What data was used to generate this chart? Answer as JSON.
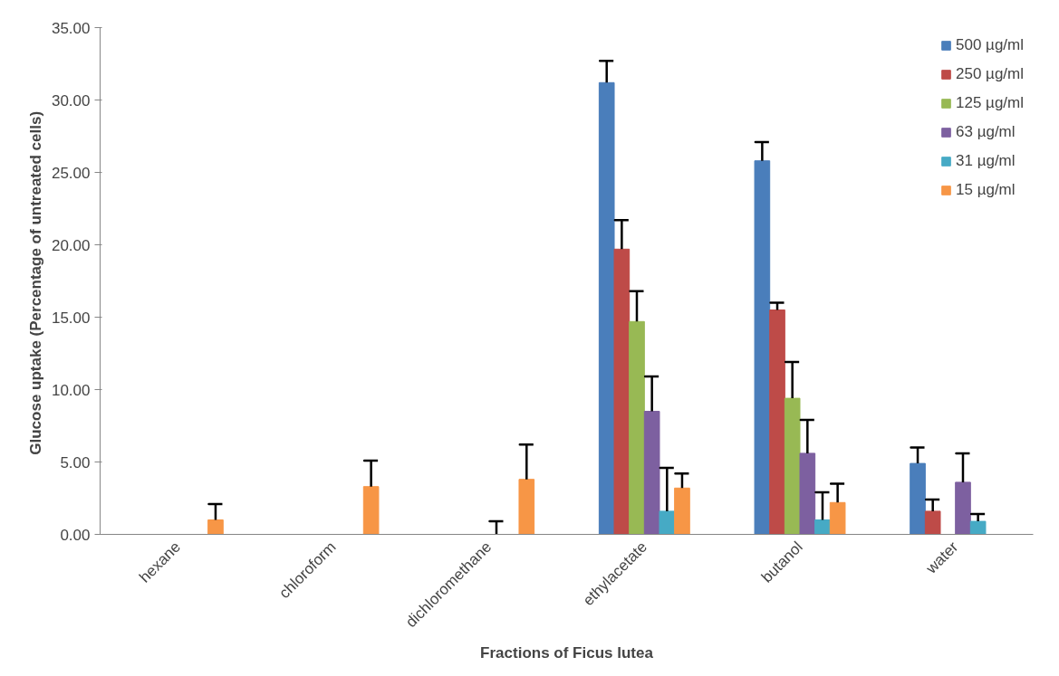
{
  "chart_data": {
    "type": "bar",
    "xlabel": "Fractions of Ficus lutea",
    "ylabel": "Glucose uptake  (Percentage of untreated cells)",
    "categories": [
      "hexane",
      "chloroform",
      "dichloromethane",
      "ethylacetate",
      "butanol",
      "water"
    ],
    "series": [
      {
        "name": "500 µg/ml",
        "color": "#4a7ebb",
        "values": [
          null,
          null,
          null,
          31.2,
          25.8,
          4.9
        ],
        "errors": [
          null,
          null,
          null,
          [
            31.2,
            32.7
          ],
          [
            25.8,
            27.1
          ],
          [
            4.9,
            6.0
          ]
        ]
      },
      {
        "name": "250 µg/ml",
        "color": "#be4b48",
        "values": [
          null,
          null,
          null,
          19.7,
          15.5,
          1.6
        ],
        "errors": [
          null,
          null,
          null,
          [
            19.7,
            21.7
          ],
          [
            15.5,
            16.0
          ],
          [
            1.6,
            2.4
          ]
        ]
      },
      {
        "name": "125 µg/ml",
        "color": "#98b954",
        "values": [
          null,
          null,
          null,
          14.7,
          9.4,
          null
        ],
        "errors": [
          null,
          null,
          null,
          [
            14.7,
            16.8
          ],
          [
            9.4,
            11.9
          ],
          null
        ]
      },
      {
        "name": "63 µg/ml",
        "color": "#7d60a0",
        "values": [
          null,
          null,
          0,
          8.5,
          5.6,
          3.6
        ],
        "errors": [
          null,
          null,
          [
            0,
            0.9
          ],
          [
            8.5,
            10.9
          ],
          [
            5.6,
            7.9
          ],
          [
            3.6,
            5.6
          ]
        ]
      },
      {
        "name": "31 µg/ml",
        "color": "#46aac5",
        "values": [
          null,
          null,
          null,
          1.6,
          1.0,
          0.9
        ],
        "errors": [
          null,
          null,
          null,
          [
            1.6,
            4.6
          ],
          [
            1.0,
            2.9
          ],
          [
            0.9,
            1.4
          ]
        ]
      },
      {
        "name": "15 µg/ml",
        "color": "#f79646",
        "values": [
          1.0,
          3.3,
          3.8,
          3.2,
          2.2,
          null
        ],
        "errors": [
          [
            1.0,
            2.1
          ],
          [
            3.3,
            5.1
          ],
          [
            3.8,
            6.2
          ],
          [
            3.2,
            4.2
          ],
          [
            2.2,
            3.5
          ],
          null
        ]
      }
    ],
    "ylim": [
      0,
      35
    ],
    "yticks": [
      {
        "value": 0,
        "label": "0.00"
      },
      {
        "value": 5,
        "label": "5.00"
      },
      {
        "value": 10,
        "label": "10.00"
      },
      {
        "value": 15,
        "label": "15.00"
      },
      {
        "value": 20,
        "label": "20.00"
      },
      {
        "value": 25,
        "label": "25.00"
      },
      {
        "value": 30,
        "label": "30.00"
      },
      {
        "value": 35,
        "label": "35.00"
      }
    ],
    "legend": "top right",
    "grid": false
  }
}
